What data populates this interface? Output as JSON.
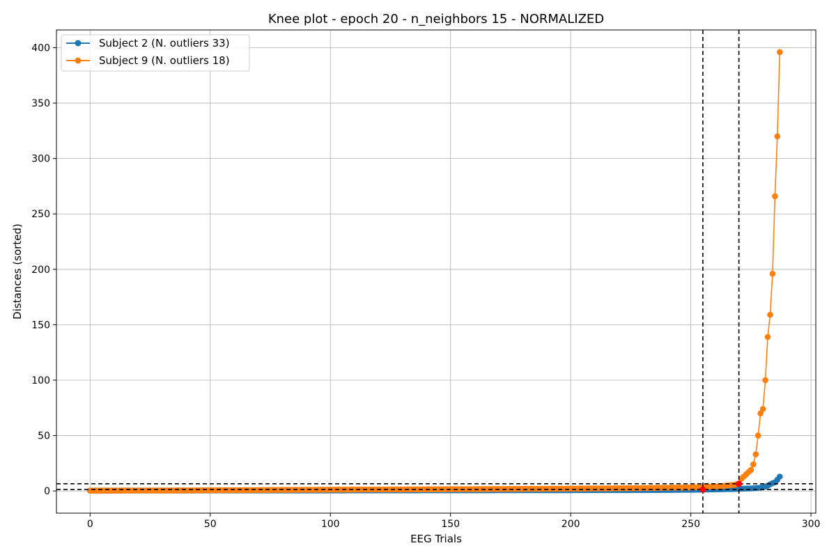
{
  "chart_data": {
    "type": "line",
    "title": "Knee plot - epoch 20 - n_neighbors 15 - NORMALIZED",
    "xlabel": "EEG Trials",
    "ylabel": "Distances (sorted)",
    "xlim": [
      -14,
      302
    ],
    "ylim": [
      -20,
      416
    ],
    "xticks": [
      0,
      50,
      100,
      150,
      200,
      250,
      300
    ],
    "yticks": [
      0,
      50,
      100,
      150,
      200,
      250,
      300,
      350,
      400
    ],
    "grid": true,
    "legend_position": "top-left",
    "series": [
      {
        "name": "Subject 2 (N. outliers 33)",
        "color": "#1f77b4",
        "marker": "circle",
        "count": 288,
        "anchors": [
          [
            0,
            0.3
          ],
          [
            100,
            0.5
          ],
          [
            200,
            0.7
          ],
          [
            240,
            0.9
          ],
          [
            254,
            1.2
          ],
          [
            262,
            1.5
          ],
          [
            268,
            1.8
          ],
          [
            272,
            2.1
          ],
          [
            276,
            2.4
          ],
          [
            278,
            2.8
          ],
          [
            280,
            3.3
          ],
          [
            281,
            4.0
          ],
          [
            282,
            4.8
          ],
          [
            283,
            6.0
          ],
          [
            284,
            7.0
          ],
          [
            285,
            7.8
          ],
          [
            286,
            10.0
          ],
          [
            287,
            13.0
          ]
        ]
      },
      {
        "name": "Subject 9 (N. outliers 18)",
        "color": "#ff7f0e",
        "marker": "circle",
        "count": 288,
        "points": [
          [
            0,
            0.3
          ],
          [
            50,
            0.6
          ],
          [
            100,
            1.2
          ],
          [
            150,
            1.6
          ],
          [
            200,
            2.1
          ],
          [
            230,
            2.6
          ],
          [
            250,
            3.2
          ],
          [
            255,
            3.5
          ],
          [
            262,
            4.3
          ],
          [
            268,
            5.5
          ],
          [
            270,
            6.5
          ],
          [
            271,
            11.0
          ],
          [
            272,
            13.0
          ],
          [
            273,
            15.0
          ],
          [
            274,
            17.0
          ],
          [
            275,
            19.0
          ],
          [
            276,
            24.0
          ],
          [
            277,
            33.0
          ],
          [
            278,
            50.0
          ],
          [
            279,
            70.0
          ],
          [
            280,
            74.0
          ],
          [
            281,
            100.0
          ],
          [
            282,
            139.0
          ],
          [
            283,
            159.0
          ],
          [
            284,
            196.0
          ],
          [
            285,
            266.0
          ],
          [
            286,
            320.0
          ],
          [
            287,
            396.0
          ]
        ]
      }
    ],
    "knees": [
      {
        "x": 255,
        "y": 1.3,
        "color": "#ff0000"
      },
      {
        "x": 270,
        "y": 6.5,
        "color": "#ff0000"
      }
    ],
    "vlines": [
      255,
      270
    ],
    "hlines": [
      1.3,
      6.5
    ]
  }
}
